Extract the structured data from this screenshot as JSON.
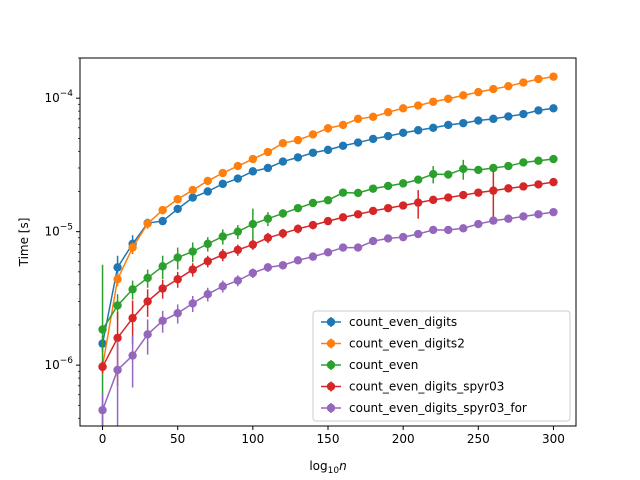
{
  "chart_data": {
    "type": "line",
    "title": "",
    "xlabel": "log",
    "xlabel_sub": "10",
    "xlabel_var": "n",
    "ylabel": "Time [s]",
    "yscale": "log",
    "xlim": [
      -15,
      315
    ],
    "ylim": [
      3.5e-07,
      0.0002
    ],
    "xticks": [
      0,
      50,
      100,
      150,
      200,
      250,
      300
    ],
    "xtick_labels": [
      "0",
      "50",
      "100",
      "150",
      "200",
      "250",
      "300"
    ],
    "yticks": [
      1e-06,
      1e-05,
      0.0001
    ],
    "ytick_labels": [
      {
        "base": "10",
        "exp": "−6"
      },
      {
        "base": "10",
        "exp": "−5"
      },
      {
        "base": "10",
        "exp": "−4"
      }
    ],
    "grid": false,
    "legend_position": "lower-right",
    "x": [
      0,
      10,
      20,
      30,
      40,
      50,
      60,
      70,
      80,
      90,
      100,
      110,
      120,
      130,
      140,
      150,
      160,
      170,
      180,
      190,
      200,
      210,
      220,
      230,
      240,
      250,
      260,
      270,
      280,
      290,
      300
    ],
    "series": [
      {
        "name": "count_even_digits",
        "color": "#1f77b4",
        "values": [
          1.45e-06,
          5.4e-06,
          8.1e-06,
          1.16e-05,
          1.2e-05,
          1.48e-05,
          1.8e-05,
          2e-05,
          2.28e-05,
          2.5e-05,
          2.83e-05,
          3e-05,
          3.35e-05,
          3.6e-05,
          3.9e-05,
          4.1e-05,
          4.4e-05,
          4.65e-05,
          4.95e-05,
          5.2e-05,
          5.5e-05,
          5.75e-05,
          6e-05,
          6.3e-05,
          6.5e-05,
          6.8e-05,
          7e-05,
          7.3e-05,
          7.6e-05,
          8.1e-05,
          8.4e-05
        ],
        "errors": [
          2e-07,
          1.2e-06,
          1.3e-06,
          9e-07,
          5e-07,
          6e-07,
          7e-07,
          7e-07,
          8e-07,
          1e-06,
          1.2e-06,
          1e-06,
          2.2e-06,
          1.5e-06,
          1.5e-06,
          1.5e-06,
          1.5e-06,
          1.5e-06,
          1.5e-06,
          1.5e-06,
          1.5e-06,
          1.8e-06,
          1.8e-06,
          1.8e-06,
          1.8e-06,
          1.8e-06,
          1.8e-06,
          1.8e-06,
          3e-06,
          4e-06,
          3e-06
        ]
      },
      {
        "name": "count_even_digits2",
        "color": "#ff7f0e",
        "values": [
          9.8e-07,
          4.4e-06,
          7.6e-06,
          1.15e-05,
          1.45e-05,
          1.75e-05,
          2.05e-05,
          2.4e-05,
          2.75e-05,
          3.1e-05,
          3.5e-05,
          3.95e-05,
          4.6e-05,
          4.85e-05,
          5.35e-05,
          5.95e-05,
          6.3e-05,
          7e-05,
          7.25e-05,
          7.85e-05,
          8.4e-05,
          8.8e-05,
          9.4e-05,
          9.9e-05,
          0.000105,
          0.000111,
          0.000117,
          0.000123,
          0.000131,
          0.000139,
          0.000145
        ],
        "errors": [
          1e-07,
          5e-07,
          7e-07,
          1e-06,
          1e-06,
          1e-06,
          1e-06,
          1e-06,
          1e-06,
          1.5e-06,
          1.5e-06,
          1.5e-06,
          2e-06,
          2e-06,
          2.5e-06,
          4.5e-06,
          3e-06,
          3e-06,
          3e-06,
          3e-06,
          3e-06,
          3e-06,
          3e-06,
          3e-06,
          4e-06,
          4e-06,
          4e-06,
          4e-06,
          4e-06,
          4e-06,
          5e-06
        ]
      },
      {
        "name": "count_even",
        "color": "#2ca02c",
        "values": [
          1.85e-06,
          2.8e-06,
          3.7e-06,
          4.5e-06,
          5.5e-06,
          6.4e-06,
          7.1e-06,
          8.1e-06,
          9.2e-06,
          1e-05,
          1.14e-05,
          1.25e-05,
          1.37e-05,
          1.5e-05,
          1.64e-05,
          1.72e-05,
          1.96e-05,
          1.95e-05,
          2.1e-05,
          2.2e-05,
          2.3e-05,
          2.45e-05,
          2.7e-05,
          2.68e-05,
          2.95e-05,
          2.9e-05,
          3e-05,
          3.1e-05,
          3.3e-05,
          3.4e-05,
          3.5e-05
        ],
        "errors": [
          3.8e-06,
          6e-07,
          6e-07,
          7e-07,
          1.1e-06,
          1.2e-06,
          1.2e-06,
          1e-06,
          1.2e-06,
          1.2e-06,
          3.5e-06,
          1.5e-06,
          1e-06,
          8e-07,
          1e-06,
          1e-06,
          1e-06,
          1e-06,
          1e-06,
          1e-06,
          1e-06,
          1.5e-06,
          4e-06,
          1.5e-06,
          5e-06,
          1.5e-06,
          1.5e-06,
          2e-06,
          2e-06,
          2e-06,
          2e-06
        ]
      },
      {
        "name": "count_even_digits_spyr03",
        "color": "#d62728",
        "values": [
          9.7e-07,
          1.6e-06,
          2.25e-06,
          3e-06,
          3.75e-06,
          4.4e-06,
          5.2e-06,
          6e-06,
          6.7e-06,
          7.3e-06,
          8e-06,
          9e-06,
          9.7e-06,
          1.05e-05,
          1.12e-05,
          1.2e-05,
          1.28e-05,
          1.35e-05,
          1.43e-05,
          1.5e-05,
          1.57e-05,
          1.65e-05,
          1.73e-05,
          1.8e-05,
          1.88e-05,
          1.96e-05,
          2.03e-05,
          2.11e-05,
          2.18e-05,
          2.26e-05,
          2.35e-05
        ],
        "errors": [
          1e-07,
          9e-07,
          8e-07,
          7e-07,
          6e-07,
          6e-07,
          6e-07,
          6e-07,
          7e-07,
          7e-07,
          7e-07,
          8e-07,
          8e-07,
          8e-07,
          8e-07,
          8e-07,
          8e-07,
          8e-07,
          8e-07,
          8e-07,
          8e-07,
          4e-06,
          1e-06,
          1e-06,
          1e-06,
          1e-06,
          8e-06,
          1e-06,
          1e-06,
          1e-06,
          1e-06
        ]
      },
      {
        "name": "count_even_digits_spyr03_for",
        "color": "#9467bd",
        "values": [
          4.6e-07,
          9.2e-07,
          1.18e-06,
          1.7e-06,
          2.15e-06,
          2.45e-06,
          2.9e-06,
          3.4e-06,
          3.9e-06,
          4.3e-06,
          4.9e-06,
          5.4e-06,
          5.6e-06,
          6.1e-06,
          6.5e-06,
          7e-06,
          7.6e-06,
          7.6e-06,
          8.5e-06,
          8.9e-06,
          9.1e-06,
          9.6e-06,
          1.03e-05,
          1.03e-05,
          1.06e-05,
          1.14e-05,
          1.21e-05,
          1.25e-05,
          1.3e-05,
          1.35e-05,
          1.4e-05
        ],
        "errors": [
          1.5e-07,
          6e-07,
          5e-07,
          5e-07,
          4e-07,
          4e-07,
          4e-07,
          4e-07,
          4e-07,
          4e-07,
          4e-07,
          4e-07,
          4e-07,
          4e-07,
          4e-07,
          4e-07,
          4e-07,
          4e-07,
          4e-07,
          4e-07,
          4e-07,
          5e-07,
          5e-07,
          5e-07,
          5e-07,
          5e-07,
          5e-07,
          5e-07,
          5e-07,
          5e-07,
          5e-07
        ]
      }
    ]
  }
}
